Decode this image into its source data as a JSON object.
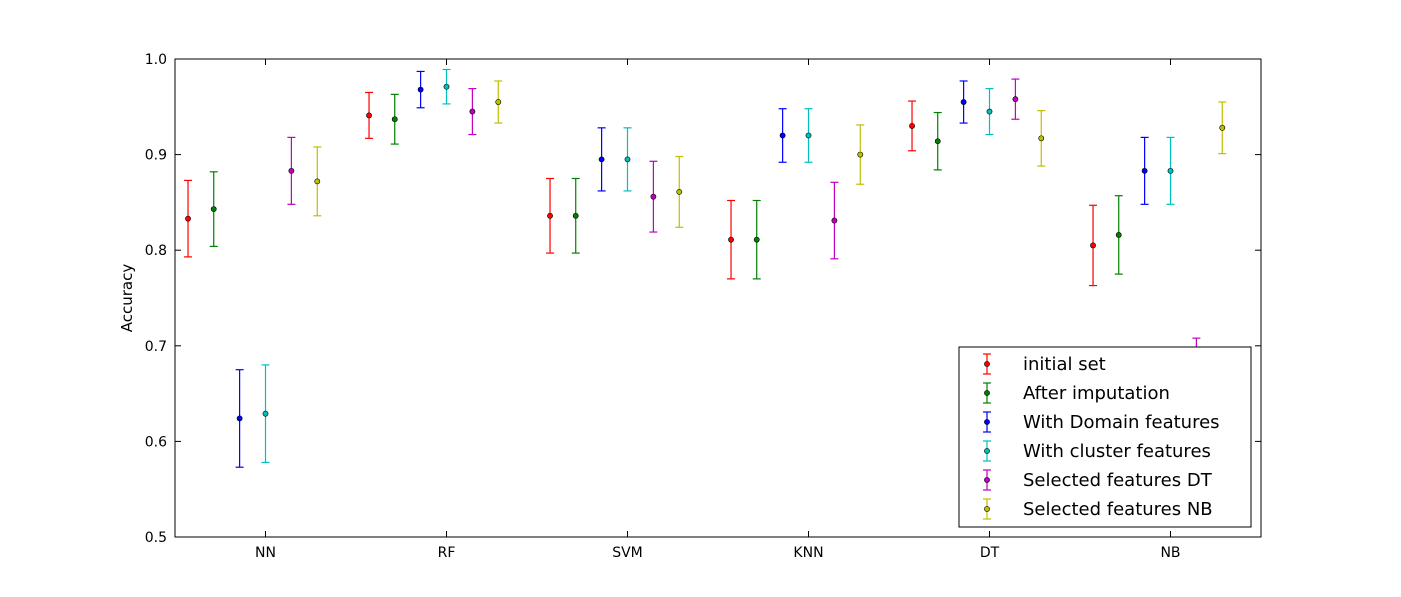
{
  "chart_data": {
    "type": "scatter",
    "ylabel": "Accuracy",
    "ylim": [
      0.5,
      1.0
    ],
    "yticks": [
      "0.5",
      "0.6",
      "0.7",
      "0.8",
      "0.9",
      "1.0"
    ],
    "categories": [
      "NN",
      "RF",
      "SVM",
      "KNN",
      "DT",
      "NB"
    ],
    "legend_position": "lower-right",
    "grid": false,
    "series": [
      {
        "name": "initial set",
        "color": "#ff0000",
        "values": [
          0.833,
          0.941,
          0.836,
          0.811,
          0.93,
          0.805
        ],
        "errors": [
          0.04,
          0.024,
          0.039,
          0.041,
          0.026,
          0.042
        ]
      },
      {
        "name": "After imputation",
        "color": "#008000",
        "values": [
          0.843,
          0.937,
          0.836,
          0.811,
          0.914,
          0.816
        ],
        "errors": [
          0.039,
          0.026,
          0.039,
          0.041,
          0.03,
          0.041
        ]
      },
      {
        "name": "With Domain features",
        "color": "#0000ff",
        "values": [
          0.624,
          0.968,
          0.895,
          0.92,
          0.955,
          0.883
        ],
        "errors": [
          0.051,
          0.019,
          0.033,
          0.028,
          0.022,
          0.035
        ]
      },
      {
        "name": "With cluster features",
        "color": "#00bfbf",
        "values": [
          0.629,
          0.971,
          0.895,
          0.92,
          0.945,
          0.883
        ],
        "errors": [
          0.051,
          0.018,
          0.033,
          0.028,
          0.024,
          0.035
        ]
      },
      {
        "name": "Selected features DT",
        "color": "#bf00bf",
        "values": [
          0.883,
          0.945,
          0.856,
          0.831,
          0.958,
          0.68
        ],
        "errors": [
          0.035,
          0.024,
          0.037,
          0.04,
          0.021,
          0.028
        ]
      },
      {
        "name": "Selected features NB",
        "color": "#bfbf00",
        "values": [
          0.872,
          0.955,
          0.861,
          0.9,
          0.917,
          0.928
        ],
        "errors": [
          0.036,
          0.022,
          0.037,
          0.031,
          0.029,
          0.027
        ]
      }
    ]
  }
}
